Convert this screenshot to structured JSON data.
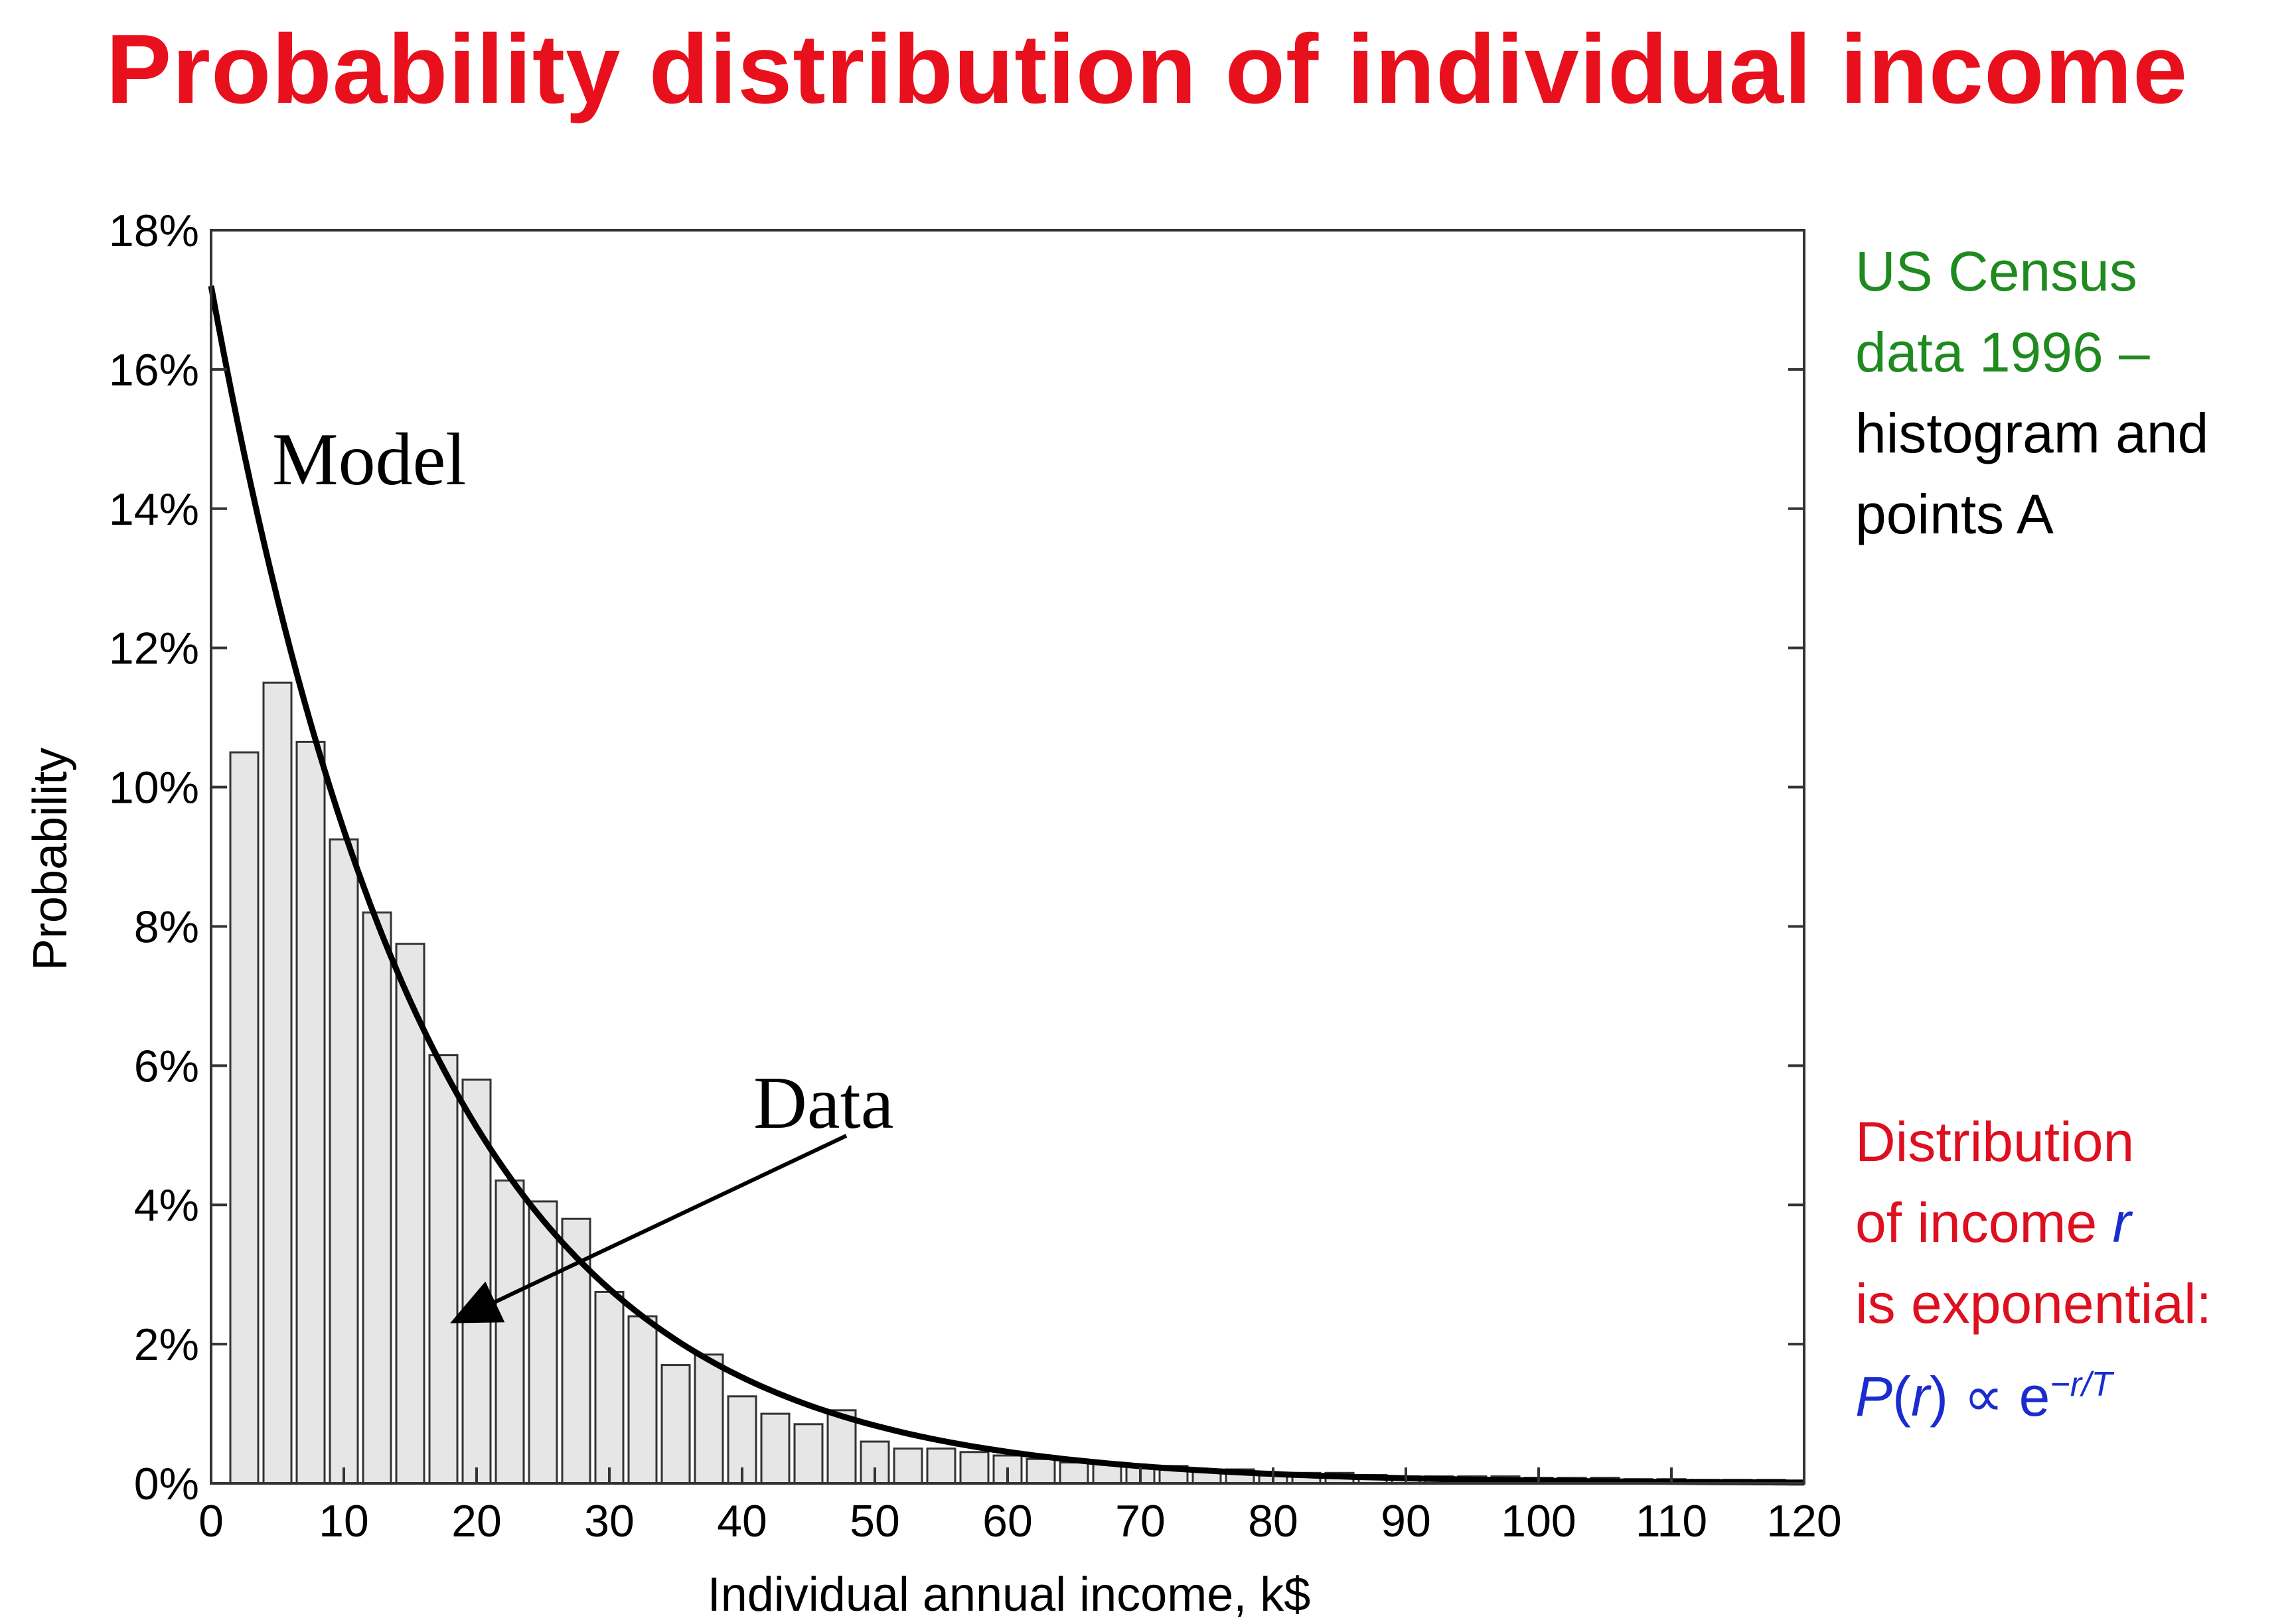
{
  "slide_title": "Probability distribution of individual income",
  "side_notes": {
    "census_line1": "US Census",
    "census_line2": "data 1996 –",
    "census_line3": "histogram and",
    "census_line4": "points A",
    "dist_line1": "Distribution",
    "dist_line2_prefix": "of income ",
    "dist_line2_var": "r",
    "dist_line3": "is exponential:",
    "formula_P": "P",
    "formula_open": "(",
    "formula_r": "r",
    "formula_close": ")",
    "formula_prop": " ∝ e",
    "formula_exponent": "−r/T"
  },
  "colors": {
    "title": "#e8101c",
    "bar_fill": "#e6e6e6",
    "bar_stroke": "#333333",
    "curve": "#000000"
  },
  "chart_data": {
    "type": "bar",
    "xlabel": "Individual annual income, k$",
    "ylabel": "Probability",
    "xlim": [
      0,
      120
    ],
    "ylim": [
      0,
      18
    ],
    "xticks": [
      0,
      10,
      20,
      30,
      40,
      50,
      60,
      70,
      80,
      90,
      100,
      110,
      120
    ],
    "xtick_labels": [
      "0",
      "10",
      "20",
      "30",
      "40",
      "50",
      "60",
      "70",
      "80",
      "90",
      "100",
      "110",
      "120"
    ],
    "yticks": [
      0,
      2,
      4,
      6,
      8,
      10,
      12,
      14,
      16,
      18
    ],
    "ytick_labels": [
      "0%",
      "2%",
      "4%",
      "6%",
      "8%",
      "10%",
      "12%",
      "14%",
      "16%",
      "18%"
    ],
    "bin_width": 2.5,
    "bar_width": 2.5,
    "bins": {
      "name": "US Census data 1996",
      "x": [
        2.5,
        5,
        7.5,
        10,
        12.5,
        15,
        17.5,
        20,
        22.5,
        25,
        27.5,
        30,
        32.5,
        35,
        37.5,
        40,
        42.5,
        45,
        47.5,
        50,
        52.5,
        55,
        57.5,
        60,
        62.5,
        65,
        67.5,
        70,
        72.5,
        75,
        77.5,
        80,
        82.5,
        85,
        87.5,
        90,
        92.5,
        95,
        97.5,
        100,
        102.5,
        105,
        107.5,
        110,
        112.5,
        115,
        117.5
      ],
      "values": [
        10.5,
        11.5,
        10.65,
        9.25,
        8.2,
        7.75,
        6.15,
        5.8,
        4.35,
        4.05,
        3.8,
        2.75,
        2.4,
        1.7,
        1.85,
        1.25,
        1.0,
        0.85,
        1.05,
        0.6,
        0.5,
        0.5,
        0.45,
        0.4,
        0.35,
        0.3,
        0.3,
        0.25,
        0.25,
        0.2,
        0.2,
        0.15,
        0.15,
        0.15,
        0.12,
        0.1,
        0.1,
        0.1,
        0.1,
        0.08,
        0.08,
        0.08,
        0.06,
        0.06,
        0.05,
        0.05,
        0.05
      ]
    },
    "model": {
      "name": "Model",
      "formula": "P(r) ∝ e^(−r/T)",
      "p0": 17.2,
      "T": 16.5
    },
    "annotations": {
      "model_label": "Model",
      "data_label": "Data",
      "data_arrow_target": [
        18,
        2.3
      ]
    }
  }
}
